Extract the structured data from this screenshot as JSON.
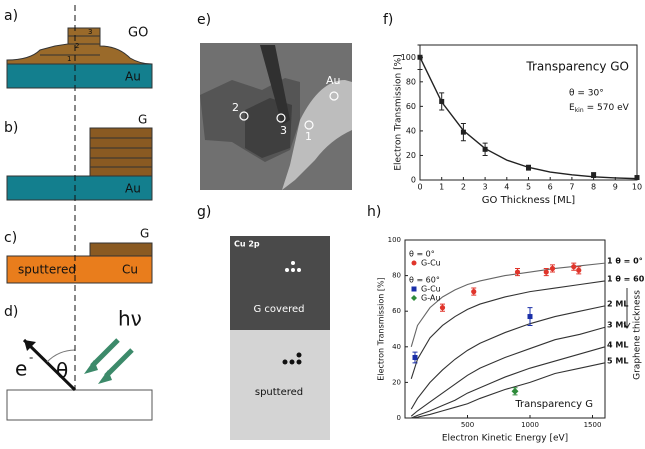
{
  "panels": {
    "a": {
      "label": "a)",
      "go": "GO",
      "au": "Au",
      "layers": [
        "1",
        "2",
        "3"
      ]
    },
    "b": {
      "label": "b)",
      "g": "G",
      "au": "Au"
    },
    "c": {
      "label": "c)",
      "g": "G",
      "sputtered": "sputtered",
      "cu": "Cu"
    },
    "d": {
      "label": "d)",
      "electron": "e",
      "charge": "-",
      "angle": "θ",
      "photon": "hν"
    },
    "e": {
      "label": "e)",
      "au": "Au",
      "spots": [
        "2",
        "3",
        "1"
      ]
    },
    "f": {
      "label": "f)"
    },
    "g": {
      "label": "g)",
      "edge": "Cu 2p",
      "covered": "G covered",
      "sputtered": "sputtered"
    },
    "h": {
      "label": "h)"
    }
  },
  "chart_data": [
    {
      "type": "line",
      "title": "Transparency GO",
      "annotations": [
        "θ = 30°",
        "E",
        "kin",
        "= 570 eV"
      ],
      "x_label": "GO Thickness [ML]",
      "y_label": "Electron Transmission [%]",
      "xlim": [
        0,
        10
      ],
      "ylim": [
        0,
        110
      ],
      "xticks": [
        0,
        1,
        2,
        3,
        4,
        5,
        6,
        7,
        8,
        9,
        10
      ],
      "yticks": [
        0,
        20,
        40,
        60,
        80,
        100
      ],
      "series": [
        {
          "mode": "points",
          "color": "#222222",
          "x": [
            0,
            1,
            2,
            3,
            5,
            8,
            10
          ],
          "values": [
            100,
            64,
            39,
            25,
            10,
            4,
            2
          ],
          "errors": [
            10,
            7,
            7,
            5,
            2,
            2,
            1
          ]
        },
        {
          "mode": "line",
          "color": "#222222",
          "x": [
            0,
            1,
            2,
            3,
            4,
            5,
            6,
            7,
            8,
            9,
            10
          ],
          "values": [
            100,
            63.5,
            40.3,
            25.6,
            16.2,
            10.3,
            6.5,
            4.2,
            2.6,
            1.7,
            1.1
          ]
        }
      ]
    },
    {
      "type": "line",
      "title": "Transparency G",
      "annotations": [
        "Graphene thickness"
      ],
      "x_label": "Electron Kinetic Energy [eV]",
      "y_label": "Electron Transmission [%]",
      "xlim": [
        0,
        1600
      ],
      "ylim": [
        0,
        100
      ],
      "xticks": [
        500,
        1000,
        1500
      ],
      "yticks": [
        0,
        20,
        40,
        60,
        80,
        100
      ],
      "x": [
        50,
        100,
        200,
        300,
        400,
        500,
        600,
        800,
        1000,
        1200,
        1400,
        1600
      ],
      "curves": [
        {
          "name": "1 θ = 0°",
          "color": "#666666",
          "values": [
            40,
            52,
            62,
            68,
            72,
            75,
            77,
            80,
            82,
            84,
            85.5,
            87
          ]
        },
        {
          "name": "1 θ = 60°",
          "color": "#333333",
          "values": [
            22,
            33,
            45,
            52,
            57,
            61,
            64,
            68,
            71,
            73,
            75,
            77
          ]
        },
        {
          "name": "2 ML",
          "color": "#333333",
          "values": [
            5,
            11,
            20,
            27,
            33,
            38,
            42,
            48,
            53,
            57,
            60,
            63
          ]
        },
        {
          "name": "3 ML",
          "color": "#333333",
          "values": [
            1,
            4,
            9,
            14,
            19,
            24,
            28,
            34,
            39,
            44,
            47,
            51
          ]
        },
        {
          "name": "4 ML",
          "color": "#333333",
          "values": [
            0,
            1.5,
            4,
            7,
            10,
            14,
            17,
            23,
            28,
            32,
            36,
            40
          ]
        },
        {
          "name": "5 ML",
          "color": "#333333",
          "values": [
            0,
            0.5,
            2,
            4,
            6,
            8,
            11,
            16,
            20,
            25,
            28,
            31
          ]
        }
      ],
      "legend_groups": [
        {
          "title": "θ = 0°",
          "series": [
            {
              "name": "G-Cu",
              "color": "#e0352b",
              "marker": "circle",
              "x": [
                300,
                550,
                900,
                1130,
                1180,
                1350,
                1390
              ],
              "values": [
                62,
                71,
                82,
                82,
                84,
                85,
                83
              ],
              "errors": [
                2,
                2,
                2,
                2,
                2,
                2,
                2
              ]
            }
          ]
        },
        {
          "title": "θ = 60°",
          "series": [
            {
              "name": "G-Cu",
              "color": "#1a2fa8",
              "marker": "square",
              "x": [
                80,
                1000
              ],
              "values": [
                34,
                57
              ],
              "errors": [
                3,
                5
              ]
            },
            {
              "name": "G-Au",
              "color": "#2e8b3a",
              "marker": "diamond",
              "x": [
                880
              ],
              "values": [
                15
              ],
              "errors": [
                2
              ]
            }
          ]
        }
      ]
    }
  ]
}
